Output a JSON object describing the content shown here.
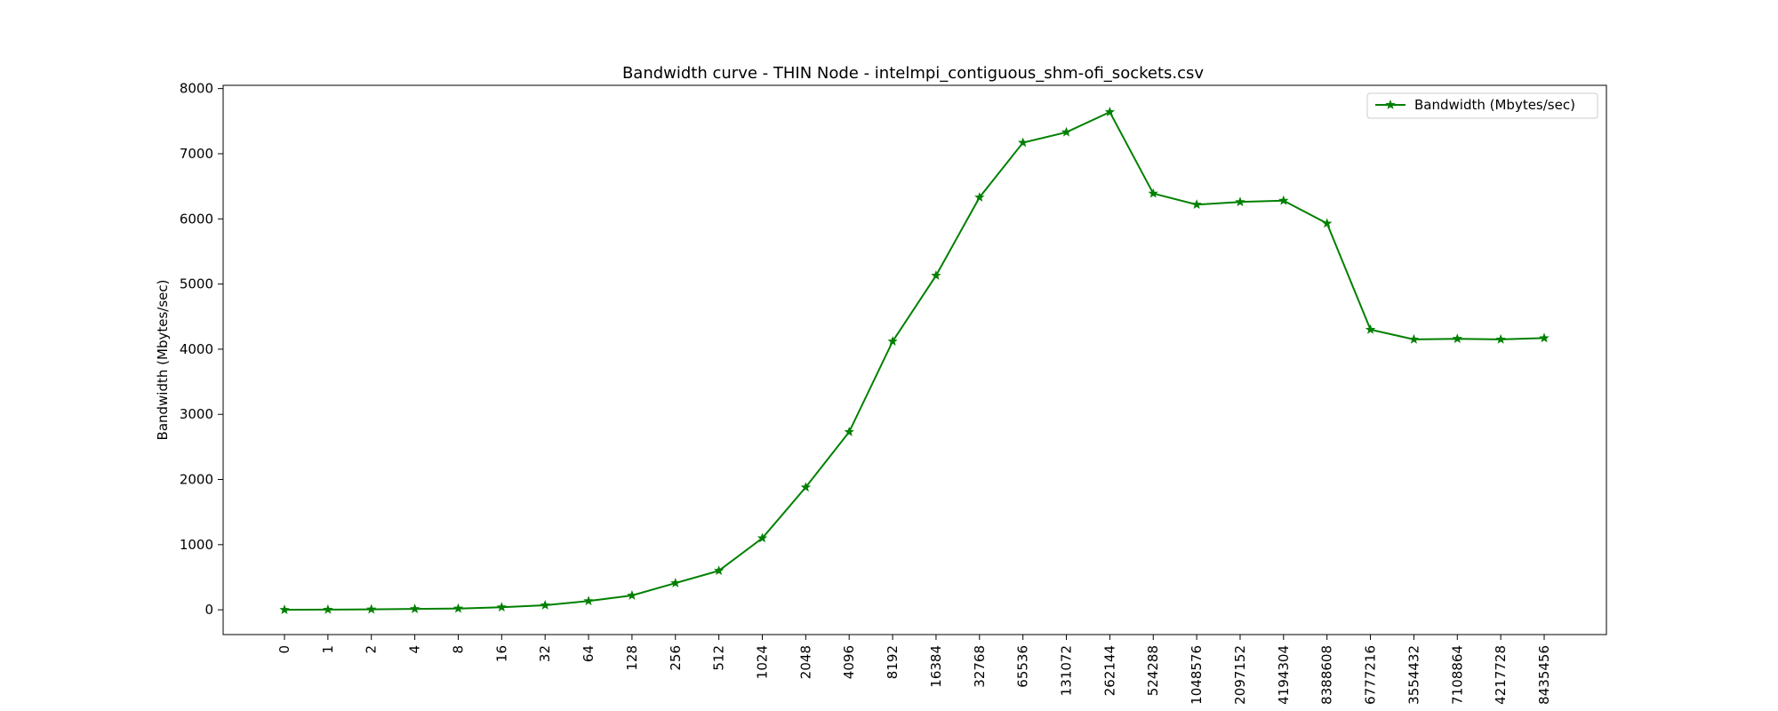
{
  "chart_data": {
    "type": "line",
    "title": "Bandwidth curve - THIN Node - intelmpi_contiguous_shm-ofi_sockets.csv",
    "xlabel": "",
    "ylabel": "Bandwidth (Mbytes/sec)",
    "categories": [
      "0",
      "1",
      "2",
      "4",
      "8",
      "16",
      "32",
      "64",
      "128",
      "256",
      "512",
      "1024",
      "2048",
      "4096",
      "8192",
      "16384",
      "32768",
      "65536",
      "131072",
      "262144",
      "524288",
      "1048576",
      "2097152",
      "4194304",
      "8388608",
      "6777216",
      "3554432",
      "7108864",
      "4217728",
      "8435456"
    ],
    "series": [
      {
        "name": "Bandwidth (Mbytes/sec)",
        "color": "#008000",
        "marker": "star",
        "values": [
          0,
          3,
          7,
          14,
          20,
          40,
          70,
          135,
          220,
          410,
          600,
          1100,
          1880,
          2730,
          4120,
          5130,
          6330,
          7170,
          7330,
          7640,
          6390,
          6220,
          6260,
          6280,
          5930,
          4300,
          4150,
          4160,
          4150,
          4170
        ]
      }
    ],
    "ylim": [
      -380,
      8050
    ],
    "yticks": [
      0,
      1000,
      2000,
      3000,
      4000,
      5000,
      6000,
      7000,
      8000
    ],
    "grid": false,
    "legend": "top-right"
  }
}
